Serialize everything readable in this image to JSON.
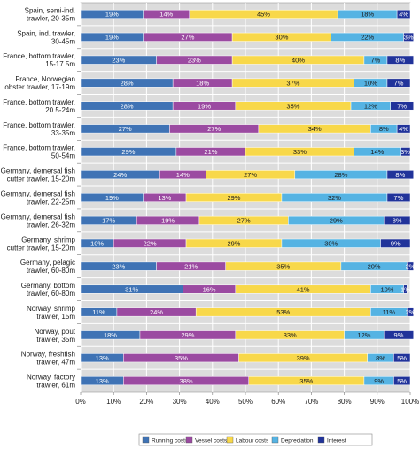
{
  "chart_data": {
    "type": "bar",
    "orientation": "horizontal",
    "stacked": true,
    "categories": [
      [
        "Spain, semi-ind.",
        "trawler, 20-35m"
      ],
      [
        "Spain, ind. trawler,",
        "30-45m"
      ],
      [
        "France, bottom trawler,",
        "15-17.5m"
      ],
      [
        "France, Norwegian",
        "lobster trawler, 17-19m"
      ],
      [
        "France, bottom trawler,",
        "20.5-24m"
      ],
      [
        "France, bottom trawler,",
        "33-35m"
      ],
      [
        "France, bottom trawler,",
        "50-54m"
      ],
      [
        "Germany, demersal fish",
        "cutter trawler, 15-20m"
      ],
      [
        "Germany, demersal fish",
        "trawler, 22-25m"
      ],
      [
        "Germany, demersal fish",
        "trawler, 26-32m"
      ],
      [
        "Germany, shrimp",
        "cutter trawler, 15-20m"
      ],
      [
        "Germany, pelagic",
        "trawler, 60-80m"
      ],
      [
        "Germany, bottom",
        "trawler, 60-80m"
      ],
      [
        "Norway, shrimp",
        "trawler, 15m"
      ],
      [
        "Norway, pout",
        "trawler, 35m"
      ],
      [
        "Norway, freshfish",
        "trawler, 47m"
      ],
      [
        "Norway, factory",
        "trawler, 61m"
      ]
    ],
    "series": [
      {
        "name": "Running costs",
        "color": "#3f73b5",
        "text_color": "#ffffff",
        "values": [
          19,
          19,
          23,
          28,
          28,
          27,
          29,
          24,
          19,
          17,
          10,
          23,
          31,
          11,
          18,
          13,
          13
        ]
      },
      {
        "name": "Vessel costs",
        "color": "#9b4aa1",
        "text_color": "#ffffff",
        "values": [
          14,
          27,
          23,
          18,
          19,
          27,
          21,
          14,
          13,
          19,
          22,
          21,
          16,
          24,
          29,
          35,
          38
        ]
      },
      {
        "name": "Labour costs",
        "color": "#f8d84a",
        "text_color": "#1a1a1a",
        "values": [
          45,
          30,
          40,
          37,
          35,
          34,
          33,
          27,
          29,
          27,
          29,
          35,
          41,
          53,
          33,
          39,
          35
        ]
      },
      {
        "name": "Depreciation",
        "color": "#55b3e3",
        "text_color": "#1a1a1a",
        "values": [
          18,
          22,
          7,
          10,
          12,
          8,
          14,
          28,
          32,
          29,
          30,
          20,
          10,
          11,
          12,
          8,
          9
        ]
      },
      {
        "name": "Interest",
        "color": "#21339a",
        "text_color": "#ffffff",
        "values": [
          4,
          3,
          8,
          7,
          7,
          4,
          3,
          8,
          7,
          8,
          9,
          2,
          1,
          2,
          9,
          5,
          5
        ]
      }
    ],
    "xlim": [
      0,
      100
    ],
    "x_ticks": [
      "0%",
      "10%",
      "20%",
      "30%",
      "40%",
      "50%",
      "60%",
      "70%",
      "80%",
      "90%",
      "100%"
    ],
    "grid": true,
    "legend_position": "bottom"
  }
}
